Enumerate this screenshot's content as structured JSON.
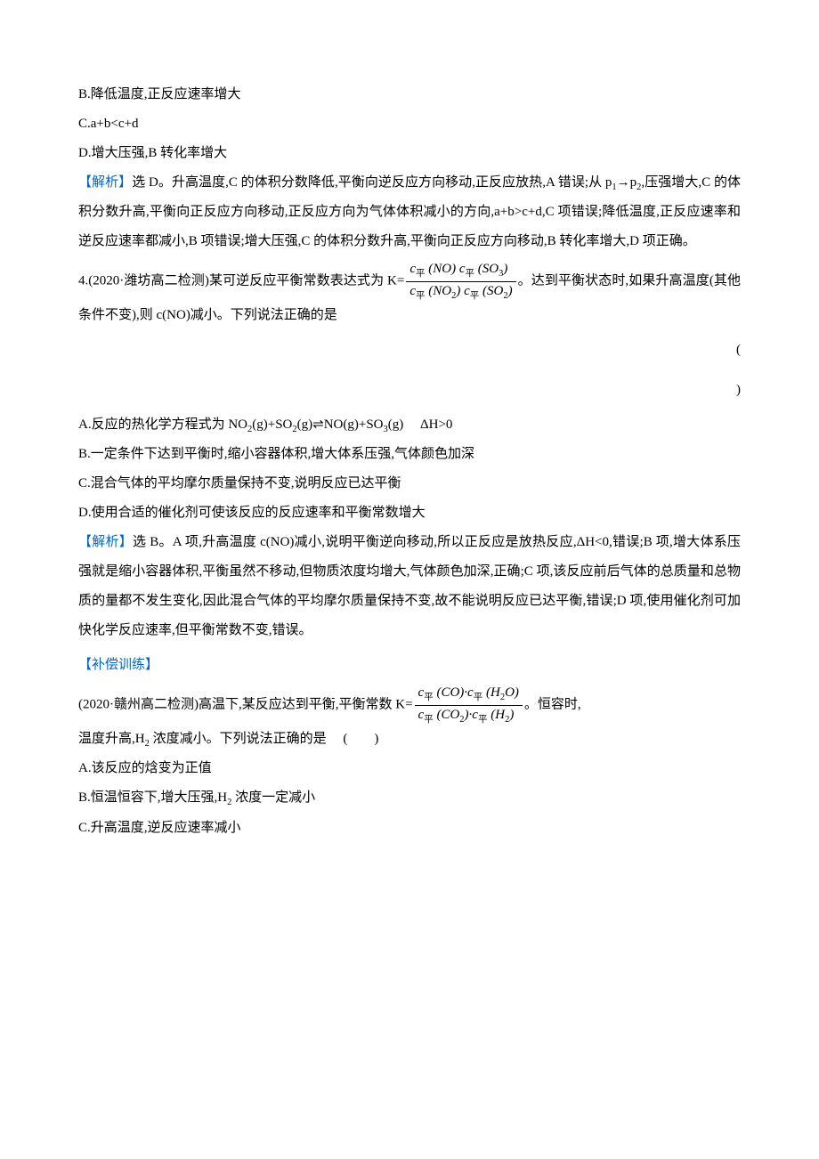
{
  "colors": {
    "text": "#000000",
    "accent": "#0066cc",
    "background": "#ffffff",
    "rule": "#000000"
  },
  "typography": {
    "body_family": "SimSun",
    "body_size_pt": 11,
    "line_height": 2.2,
    "math_family": "Cambria Math"
  },
  "q3": {
    "optB": "B.降低温度,正反应速率增大",
    "optC": "C.a+b<c+d",
    "optD": "D.增大压强,B 转化率增大",
    "ans_label": "【解析】",
    "ans_lead": "选 D。升高温度,C 的体积分数降低,平衡向逆反应方向移动,正反应放热,A 错误;从 p",
    "ans_sub1": "1",
    "ans_line2a": "→p",
    "ans_sub2": "2",
    "ans_line2b": ",压强增大,C 的体积分数升高,平衡向正反应方向移动,正反应方向为气体体积减小的方向,a+b>c+d,C 项错误;降低温度,正反应速率和逆反应速率都减小,B 项错误;增大压强,C 的体积分数升高,平衡向正反应方向移动,B 转化率增大,D 项正确。"
  },
  "q4": {
    "stem_a": "4.(2020·潍坊高二检测)某可逆反应平衡常数表达式为 K=",
    "frac": {
      "num": "c平 (NO) c平 (SO3)",
      "den": "c平 (NO2) c平 (SO2)"
    },
    "stem_b": "。达到平衡状态时,如果升高温度(其他条件不变),则 c(NO)减小。下列说法正确的是",
    "paren_open": "(",
    "paren_close": ")",
    "optA_a": "A.反应的热化学方程式为 NO",
    "optA_b": "(g)+SO",
    "optA_c": "(g)",
    "optA_d": "NO(g)+SO",
    "optA_e": "(g)　 ΔH>0",
    "sub2": "2",
    "sub3": "3",
    "arrow": "⇌",
    "optB": "B.一定条件下达到平衡时,缩小容器体积,增大体系压强,气体颜色加深",
    "optC": "C.混合气体的平均摩尔质量保持不变,说明反应已达平衡",
    "optD": "D.使用合适的催化剂可使该反应的反应速率和平衡常数增大",
    "ans_label": "【解析】",
    "ans_body": "选 B。A 项,升高温度 c(NO)减小,说明平衡逆向移动,所以正反应是放热反应,ΔH<0,错误;B 项,增大体系压强就是缩小容器体积,平衡虽然不移动,但物质浓度均增大,气体颜色加深,正确;C 项,该反应前后气体的总质量和总物质的量都不发生变化,因此混合气体的平均摩尔质量保持不变,故不能说明反应已达平衡,错误;D 项,使用催化剂可加快化学反应速率,但平衡常数不变,错误。"
  },
  "supp": {
    "label": "【补偿训练】",
    "stem_a": "(2020·赣州高二检测)高温下,某反应达到平衡,平衡常数 K=",
    "frac": {
      "num": "c平 (CO)·c平 (H2O)",
      "den": "c平 (CO2)·c平 (H2)"
    },
    "stem_b": "。恒容时,",
    "stem_c_a": "温度升高,H",
    "stem_c_b": " 浓度减小。下列说法正确的是　 (　　)",
    "sub2": "2",
    "optA": "A.该反应的焓变为正值",
    "optB_a": "B.恒温恒容下,增大压强,H",
    "optB_b": " 浓度一定减小",
    "optC": "C.升高温度,逆反应速率减小"
  }
}
